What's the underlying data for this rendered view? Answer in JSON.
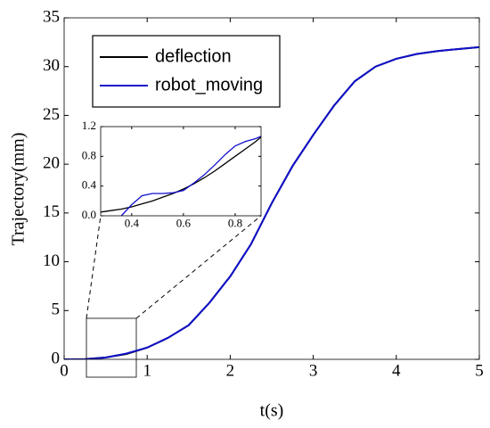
{
  "chart_data": [
    {
      "type": "line",
      "xlabel": "t(s)",
      "ylabel": "Trajectory(mm)",
      "x": [
        0,
        0.25,
        0.5,
        0.75,
        1,
        1.25,
        1.5,
        1.75,
        2,
        2.25,
        2.5,
        2.75,
        3,
        3.25,
        3.5,
        3.75,
        4,
        4.25,
        4.5,
        4.75,
        5
      ],
      "series": [
        {
          "name": "deflection",
          "color": "#000000",
          "values": [
            0,
            0.02,
            0.2,
            0.55,
            1.2,
            2.2,
            3.5,
            5.8,
            8.5,
            11.8,
            16.0,
            19.8,
            23.0,
            26.0,
            28.5,
            30.0,
            30.8,
            31.3,
            31.6,
            31.8,
            32.0
          ]
        },
        {
          "name": "robot_moving",
          "color": "#1010cc",
          "values": [
            0,
            0,
            0.18,
            0.6,
            1.2,
            2.2,
            3.5,
            5.8,
            8.5,
            11.8,
            16.0,
            19.8,
            23.0,
            26.0,
            28.5,
            30.0,
            30.8,
            31.3,
            31.6,
            31.8,
            32.0
          ]
        }
      ],
      "xlim": [
        0,
        5
      ],
      "xticks": [
        0,
        1,
        2,
        3,
        4,
        5
      ],
      "ylim": [
        0,
        35
      ],
      "yticks": [
        0,
        5,
        10,
        15,
        20,
        25,
        30,
        35
      ],
      "legend": "upper left"
    },
    {
      "type": "line",
      "x": [
        0.28,
        0.32,
        0.36,
        0.4,
        0.44,
        0.48,
        0.52,
        0.56,
        0.6,
        0.64,
        0.68,
        0.72,
        0.76,
        0.8,
        0.84,
        0.88,
        0.9
      ],
      "series": [
        {
          "name": "deflection",
          "color": "#000000",
          "values": [
            0.05,
            0.07,
            0.09,
            0.12,
            0.16,
            0.2,
            0.25,
            0.3,
            0.36,
            0.43,
            0.51,
            0.6,
            0.7,
            0.8,
            0.9,
            1.0,
            1.06
          ]
        },
        {
          "name": "robot_moving",
          "color": "#1010cc",
          "values": [
            null,
            null,
            0.0,
            0.15,
            0.27,
            0.3,
            0.3,
            0.31,
            0.34,
            0.44,
            0.55,
            0.68,
            0.82,
            0.94,
            1.0,
            1.04,
            1.07
          ]
        }
      ],
      "xlim": [
        0.28,
        0.9
      ],
      "xticks": [
        0.4,
        0.6,
        0.8
      ],
      "ylim": [
        0,
        1.2
      ],
      "yticks": [
        {
          "value": 0,
          "label": "0.0"
        },
        0.4,
        0.8,
        1.2
      ]
    }
  ]
}
